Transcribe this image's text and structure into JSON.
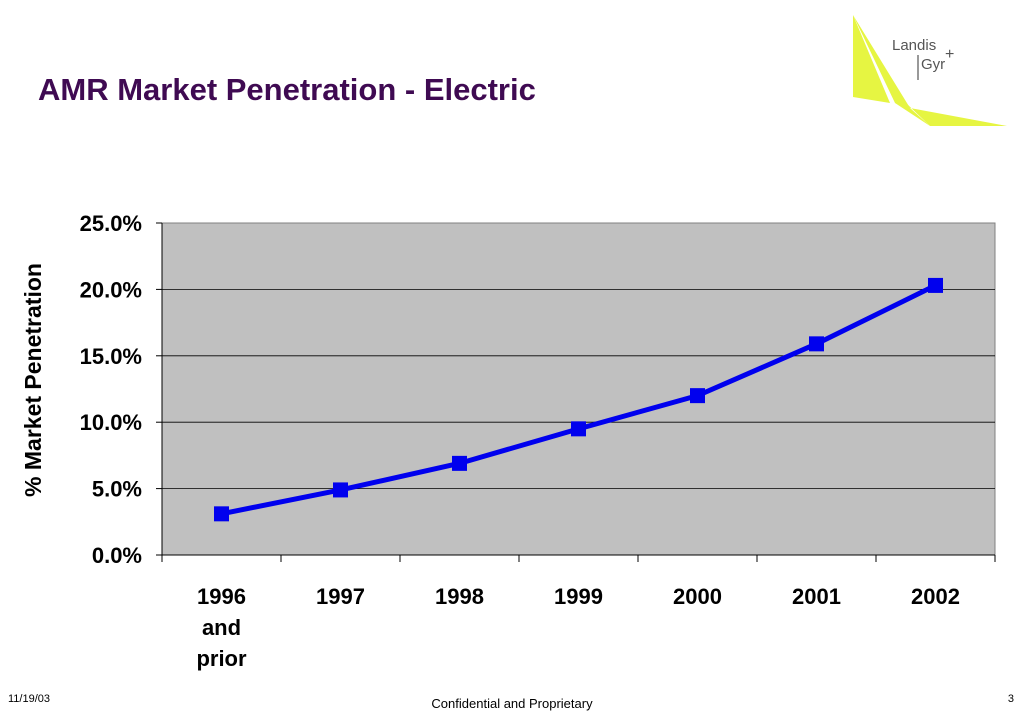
{
  "slide": {
    "title": "AMR Market Penetration - Electric",
    "footer_date": "11/19/03",
    "footer_center": "Confidential and Proprietary",
    "page_number": "3"
  },
  "logo": {
    "line1": "Landis",
    "line2": "Gyr",
    "plus": "+",
    "accent_color": "#e6f542",
    "text_color": "#555555"
  },
  "chart_data": {
    "type": "line",
    "title": "",
    "xlabel": "",
    "ylabel": "% Market Penetration",
    "categories": [
      [
        "1996",
        "and",
        "prior"
      ],
      [
        "1997"
      ],
      [
        "1998"
      ],
      [
        "1999"
      ],
      [
        "2000"
      ],
      [
        "2001"
      ],
      [
        "2002"
      ]
    ],
    "y_tick_labels": [
      "0.0%",
      "5.0%",
      "10.0%",
      "15.0%",
      "20.0%",
      "25.0%"
    ],
    "ylim": [
      0,
      25
    ],
    "series": [
      {
        "values": [
          3.1,
          4.9,
          6.9,
          9.5,
          12.0,
          15.9,
          20.3
        ],
        "color": "#0000ee"
      }
    ],
    "plot_background": "#c0c0c0",
    "grid": true,
    "legend": "none"
  }
}
